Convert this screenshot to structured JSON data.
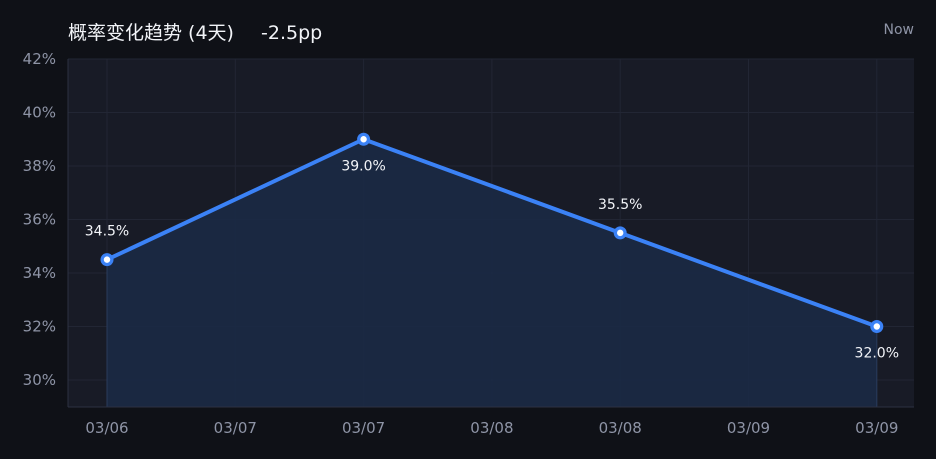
{
  "header": {
    "title": "概率变化趋势 (4天)",
    "delta": "-2.5pp",
    "now_label": "Now"
  },
  "colors": {
    "background": "#0f1117",
    "plot_background": "#181b26",
    "line": "#3b82f6",
    "area": "#1b2a45",
    "grid": "#222634",
    "text": "#f2f4f8",
    "muted_text": "#8e94a6"
  },
  "chart_data": {
    "type": "area",
    "title": "概率变化趋势 (4天)",
    "x_tick_labels": [
      "03/06",
      "03/07",
      "03/07",
      "03/08",
      "03/08",
      "03/09",
      "03/09"
    ],
    "series": [
      {
        "points": [
          {
            "x_index": 0,
            "y": 34.5,
            "label": "34.5%",
            "label_position": "above"
          },
          {
            "x_index": 2,
            "y": 39.0,
            "label": "39.0%",
            "label_position": "below"
          },
          {
            "x_index": 4,
            "y": 35.5,
            "label": "35.5%",
            "label_position": "above"
          },
          {
            "x_index": 6,
            "y": 32.0,
            "label": "32.0%",
            "label_position": "below"
          }
        ]
      }
    ],
    "y_ticks": [
      {
        "value": 42,
        "label": "42%"
      },
      {
        "value": 40,
        "label": "40%"
      },
      {
        "value": 38,
        "label": "38%"
      },
      {
        "value": 36,
        "label": "36%"
      },
      {
        "value": 34,
        "label": "34%"
      },
      {
        "value": 32,
        "label": "32%"
      },
      {
        "value": 30,
        "label": "30%"
      }
    ],
    "ylim": [
      29.0,
      42.0
    ],
    "xlabel": "",
    "ylabel": "",
    "grid": true,
    "legend": "none"
  }
}
